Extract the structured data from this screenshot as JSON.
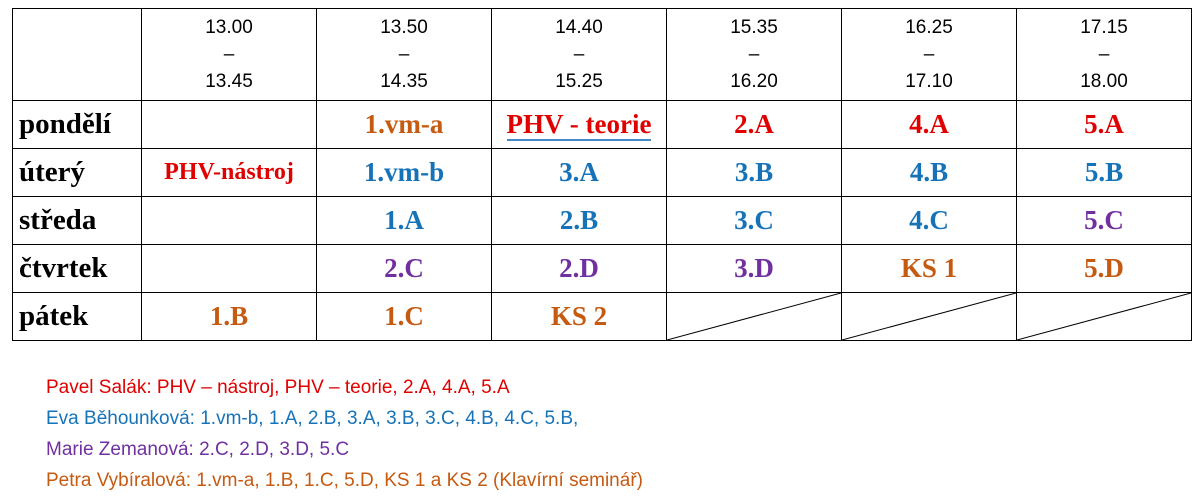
{
  "header": {
    "times": [
      {
        "start": "13.00",
        "dash": "–",
        "end": "13.45"
      },
      {
        "start": "13.50",
        "dash": "–",
        "end": "14.35"
      },
      {
        "start": "14.40",
        "dash": "–",
        "end": "15.25"
      },
      {
        "start": "15.35",
        "dash": "–",
        "end": "16.20"
      },
      {
        "start": "16.25",
        "dash": "–",
        "end": "17.10"
      },
      {
        "start": "17.15",
        "dash": "–",
        "end": "18.00"
      }
    ]
  },
  "days": [
    {
      "name": "pondělí",
      "cells": [
        "",
        "1.vm-a",
        "PHV - teorie",
        "2.A",
        "4.A",
        "5.A"
      ]
    },
    {
      "name": "úterý",
      "cells": [
        "PHV-nástroj",
        "1.vm-b",
        "3.A",
        "3.B",
        "4.B",
        "5.B"
      ]
    },
    {
      "name": "středa",
      "cells": [
        "",
        "1.A",
        "2.B",
        "3.C",
        "4.C",
        "5.C"
      ]
    },
    {
      "name": "čtvrtek",
      "cells": [
        "",
        "2.C",
        "2.D",
        "3.D",
        "KS 1",
        "5.D"
      ]
    },
    {
      "name": "pátek",
      "cells": [
        "1.B",
        "1.C",
        "KS 2",
        "",
        "",
        ""
      ]
    }
  ],
  "colors": {
    "red": "#e00000",
    "blue": "#1673b8",
    "purple": "#7030a0",
    "orange": "#c55a11"
  },
  "legend": [
    "Pavel Salák: PHV – nástroj, PHV – teorie, 2.A, 4.A, 5.A",
    "Eva Běhounková: 1.vm-b, 1.A, 2.B, 3.A, 3.B, 3.C, 4.B, 4.C, 5.B,",
    "Marie Zemanová: 2.C, 2.D, 3.D, 5.C",
    "Petra Vybíralová: 1.vm-a, 1.B, 1.C, 5.D, KS 1 a KS 2 (Klavírní seminář)"
  ]
}
